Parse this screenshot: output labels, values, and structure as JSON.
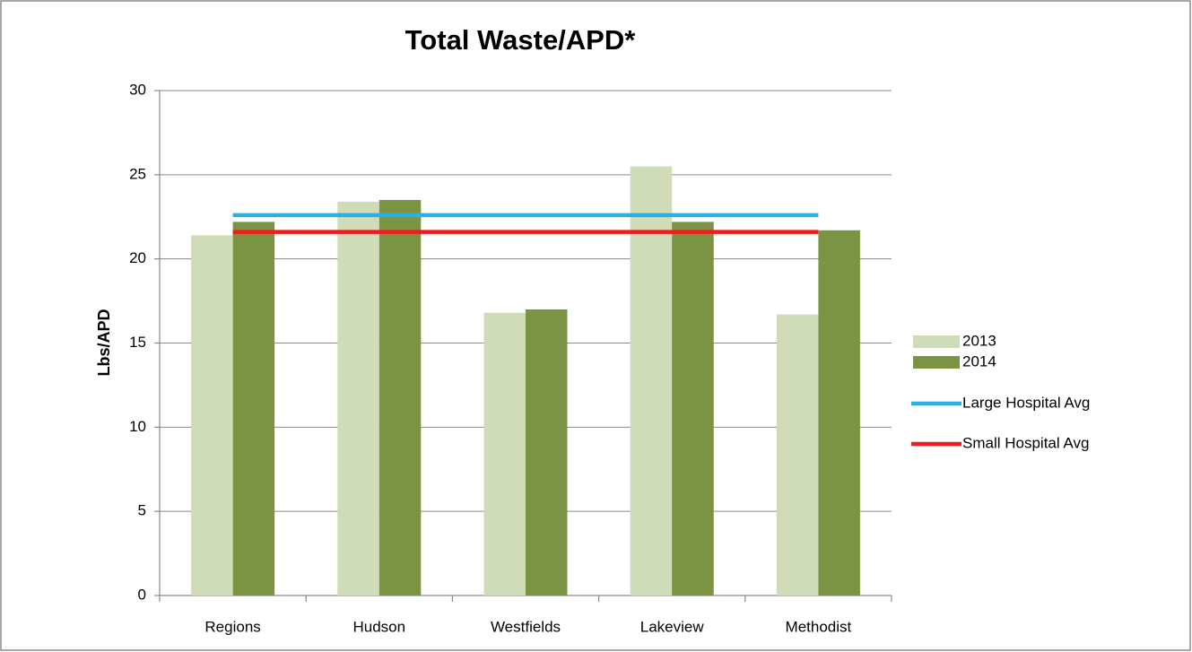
{
  "chart_data": {
    "type": "bar",
    "title": "Total Waste/APD*",
    "y_label": "Lbs/APD",
    "categories": [
      "Regions",
      "Hudson",
      "Westfields",
      "Lakeview",
      "Methodist"
    ],
    "series": [
      {
        "name": "2013",
        "color": "#d0dcb8",
        "type": "bar",
        "values": [
          21.4,
          23.4,
          16.8,
          25.5,
          16.7
        ]
      },
      {
        "name": "2014",
        "color": "#7a9444",
        "type": "bar",
        "values": [
          22.2,
          23.5,
          17.0,
          22.2,
          21.7
        ]
      },
      {
        "name": "Large Hospital Avg",
        "color": "#2ab0e8",
        "type": "line",
        "values": [
          22.6,
          22.6,
          22.6,
          22.6,
          22.6
        ]
      },
      {
        "name": "Small Hospital Avg",
        "color": "#ee1c1c",
        "type": "line",
        "values": [
          21.6,
          21.6,
          21.6,
          21.6,
          21.6
        ]
      }
    ],
    "ylim": [
      0,
      30
    ],
    "yticks": [
      0,
      5,
      10,
      15,
      20,
      25,
      30
    ],
    "grid": true,
    "legend": "right"
  }
}
